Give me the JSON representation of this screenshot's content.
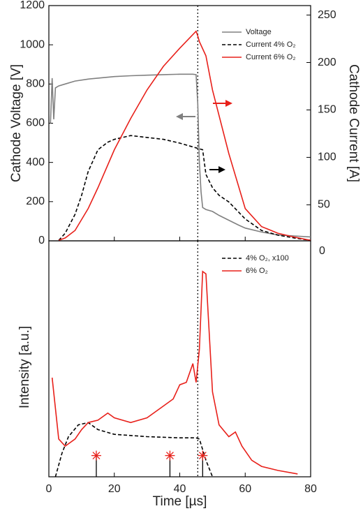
{
  "chart_data": [
    {
      "type": "line",
      "ylabel": "Cathode Voltage [V]",
      "y2label": "Cathode Current [A]",
      "ylim": [
        0,
        1200
      ],
      "yticks": [
        0,
        200,
        400,
        600,
        800,
        1000,
        1200
      ],
      "y2lim": [
        12,
        260
      ],
      "y2ticks": [
        50,
        100,
        150,
        200,
        250
      ],
      "xlim": [
        0,
        80
      ],
      "vline": 45.5,
      "series": [
        {
          "name": "Voltage",
          "color": "#808080",
          "dash": false,
          "x": [
            0.5,
            1,
            1.5,
            2,
            3,
            5,
            8,
            12,
            15,
            20,
            25,
            30,
            35,
            40,
            44,
            45,
            45.5,
            46,
            46.5,
            47,
            48,
            50,
            52,
            55,
            58,
            60,
            65,
            70,
            75,
            80
          ],
          "values": [
            600,
            830,
            620,
            780,
            790,
            800,
            815,
            825,
            830,
            838,
            842,
            845,
            848,
            850,
            850,
            848,
            700,
            400,
            250,
            170,
            160,
            150,
            130,
            105,
            80,
            65,
            45,
            30,
            25,
            20
          ]
        },
        {
          "name": "Current 4% O₂",
          "color": "#000000",
          "dash": true,
          "axis": "y2",
          "x": [
            3,
            5,
            8,
            10,
            12,
            15,
            18,
            20,
            25,
            30,
            35,
            40,
            45,
            47,
            48,
            50,
            52,
            55,
            60,
            65,
            70,
            75,
            80
          ],
          "values": [
            12.5,
            20,
            40,
            60,
            85,
            108,
            116,
            119,
            123,
            121,
            119,
            115,
            110,
            108,
            82,
            68,
            60,
            53,
            35,
            23,
            18,
            15,
            12.5
          ]
        },
        {
          "name": "Current 6% O₂",
          "color": "#e8201a",
          "dash": false,
          "axis": "y2",
          "x": [
            3,
            5,
            8,
            12,
            15,
            20,
            25,
            30,
            35,
            40,
            45,
            45.5,
            46,
            48,
            50,
            55,
            60,
            65,
            70,
            75,
            80
          ],
          "values": [
            12.5,
            15,
            23,
            46,
            68,
            108,
            141,
            171,
            196,
            215,
            233,
            228,
            222,
            207,
            171,
            104,
            46,
            27,
            20,
            16,
            12.5
          ]
        }
      ]
    },
    {
      "type": "line",
      "ylabel": "Intensity [a.u.]",
      "corner_label": "0",
      "ylim": [
        0,
        100
      ],
      "xlabel": "Time [µs]",
      "xlim": [
        0,
        80
      ],
      "xticks": [
        0,
        20,
        40,
        60,
        80
      ],
      "vline": 45.5,
      "series": [
        {
          "name": "4% O₂, x100",
          "color": "#000000",
          "dash": true,
          "x": [
            2,
            4,
            6,
            9,
            12,
            15,
            20,
            30,
            40,
            45,
            46,
            48,
            50
          ],
          "values": [
            0,
            10,
            17,
            22,
            23,
            20,
            18,
            17,
            16.5,
            16.5,
            16,
            7,
            0
          ]
        },
        {
          "name": "6% O₂",
          "color": "#e8201a",
          "dash": false,
          "x": [
            1,
            3,
            5,
            8,
            10,
            12,
            15,
            18,
            20,
            25,
            30,
            35,
            38,
            40,
            42,
            44,
            45,
            46,
            47,
            48,
            50,
            52,
            55,
            57,
            59,
            62,
            65,
            70,
            76
          ],
          "values": [
            42,
            16,
            13,
            16,
            20,
            23,
            24,
            27,
            25,
            23,
            25,
            30,
            33,
            39,
            40,
            48,
            40,
            54,
            87,
            86,
            36,
            22,
            17,
            19,
            13,
            7,
            4.4,
            2.7,
            1.2
          ]
        }
      ],
      "markers": {
        "color": "#e8201a",
        "x": [
          14.5,
          37,
          47
        ],
        "values": [
          9,
          9,
          9
        ]
      }
    }
  ]
}
